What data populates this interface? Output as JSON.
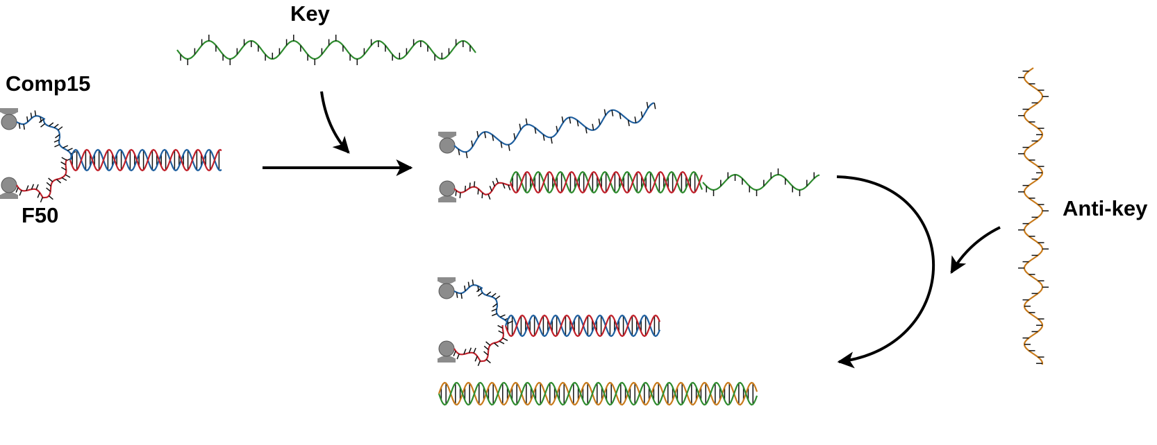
{
  "labels": {
    "key": "Key",
    "comp15": "Comp15",
    "f50": "F50",
    "anti_key": "Anti-key"
  },
  "colors": {
    "key_strand": "#2e8b2e",
    "comp15_strand": "#1f5f9f",
    "f50_strand": "#c0202a",
    "anti_key_strand": "#c87a1a",
    "anchor": "#8c8c8c",
    "arrow": "#000000"
  },
  "icons": [
    "anchor-icon",
    "arrow-icon"
  ]
}
